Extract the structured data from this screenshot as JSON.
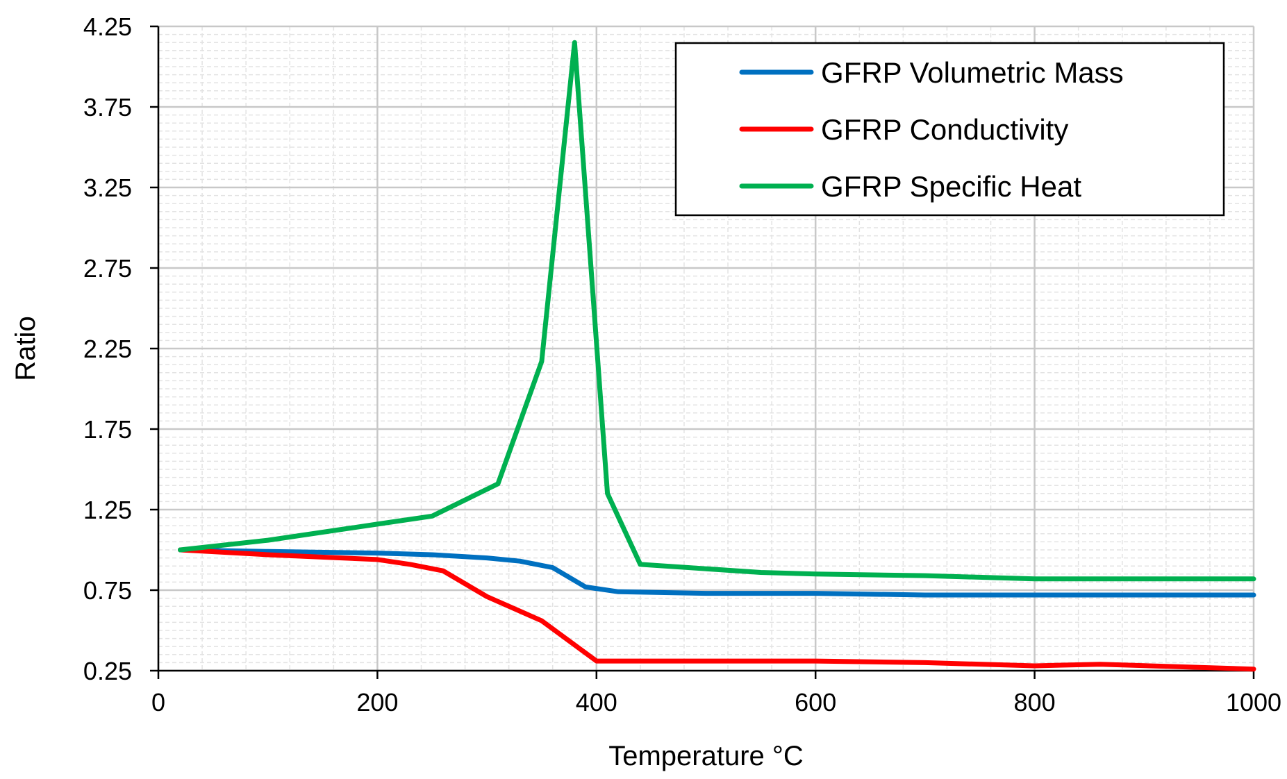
{
  "chart_data": {
    "type": "line",
    "title": "",
    "xlabel": "Temperature °C",
    "ylabel": "Ratio",
    "xlim": [
      0,
      1000
    ],
    "ylim": [
      0.25,
      4.25
    ],
    "x_ticks": [
      0,
      200,
      400,
      600,
      800,
      1000
    ],
    "x_tick_labels": [
      "0",
      "200",
      "400",
      "600",
      "800",
      "1000"
    ],
    "y_ticks": [
      0.25,
      0.75,
      1.25,
      1.75,
      2.25,
      2.75,
      3.25,
      3.75,
      4.25
    ],
    "y_tick_labels": [
      "0.25",
      "0.75",
      "1.25",
      "1.75",
      "2.25",
      "2.75",
      "3.25",
      "3.75",
      "4.25"
    ],
    "grid": true,
    "legend_position": "top-right",
    "series": [
      {
        "name": "GFRP Volumetric Mass",
        "color": "#0070c0",
        "x": [
          20,
          100,
          200,
          250,
          300,
          330,
          360,
          390,
          420,
          500,
          600,
          700,
          800,
          900,
          1000
        ],
        "y": [
          1.0,
          0.99,
          0.98,
          0.97,
          0.95,
          0.93,
          0.89,
          0.77,
          0.74,
          0.73,
          0.73,
          0.72,
          0.72,
          0.72,
          0.72
        ]
      },
      {
        "name": "GFRP Conductivity",
        "color": "#ff0000",
        "x": [
          20,
          100,
          200,
          230,
          260,
          300,
          350,
          400,
          500,
          600,
          700,
          800,
          860,
          1000
        ],
        "y": [
          1.0,
          0.97,
          0.94,
          0.91,
          0.87,
          0.71,
          0.56,
          0.31,
          0.31,
          0.31,
          0.3,
          0.28,
          0.29,
          0.26
        ]
      },
      {
        "name": "GFRP Specific Heat",
        "color": "#00b050",
        "x": [
          20,
          100,
          200,
          250,
          310,
          350,
          380,
          410,
          440,
          550,
          600,
          700,
          800,
          900,
          1000
        ],
        "y": [
          1.0,
          1.06,
          1.16,
          1.21,
          1.41,
          2.17,
          4.15,
          1.35,
          0.91,
          0.86,
          0.85,
          0.84,
          0.82,
          0.82,
          0.82
        ]
      }
    ]
  }
}
